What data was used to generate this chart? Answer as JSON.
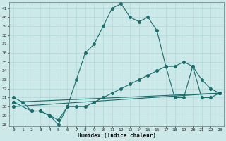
{
  "xlabel": "Humidex (Indice chaleur)",
  "bg_color": "#cce8e8",
  "grid_color": "#aad4d4",
  "line_color": "#1a6b6b",
  "xlim": [
    -0.5,
    23.5
  ],
  "ylim": [
    27.8,
    41.7
  ],
  "yticks": [
    28,
    29,
    30,
    31,
    32,
    33,
    34,
    35,
    36,
    37,
    38,
    39,
    40,
    41
  ],
  "xticks": [
    0,
    1,
    2,
    3,
    4,
    5,
    6,
    7,
    8,
    9,
    10,
    11,
    12,
    13,
    14,
    15,
    16,
    17,
    18,
    19,
    20,
    21,
    22,
    23
  ],
  "curve1_x": [
    0,
    1,
    2,
    3,
    4,
    5,
    6,
    7,
    8,
    9,
    10,
    11,
    12,
    13,
    14,
    15,
    16,
    17,
    18,
    19,
    20,
    21,
    22,
    23
  ],
  "curve1_y": [
    31.0,
    30.5,
    29.5,
    29.5,
    29.0,
    28.5,
    30.0,
    33.0,
    36.0,
    37.0,
    39.0,
    41.0,
    41.5,
    40.0,
    39.5,
    40.0,
    38.5,
    34.5,
    31.0,
    31.0,
    34.5,
    33.0,
    32.0,
    31.5
  ],
  "curve2_x": [
    0,
    2,
    3,
    4,
    5,
    6,
    7,
    8,
    9,
    10,
    11,
    12,
    13,
    14,
    15,
    16,
    17,
    18,
    19,
    20,
    21,
    22,
    23
  ],
  "curve2_y": [
    30.5,
    29.5,
    29.5,
    29.0,
    28.0,
    30.0,
    30.0,
    30.0,
    30.5,
    31.0,
    31.5,
    32.0,
    32.5,
    33.0,
    33.5,
    34.0,
    34.5,
    34.5,
    35.0,
    34.5,
    31.0,
    31.0,
    31.5
  ],
  "curve3_x": [
    0,
    23
  ],
  "curve3_y": [
    30.0,
    31.5
  ],
  "curve4_x": [
    0,
    23
  ],
  "curve4_y": [
    30.5,
    31.5
  ]
}
